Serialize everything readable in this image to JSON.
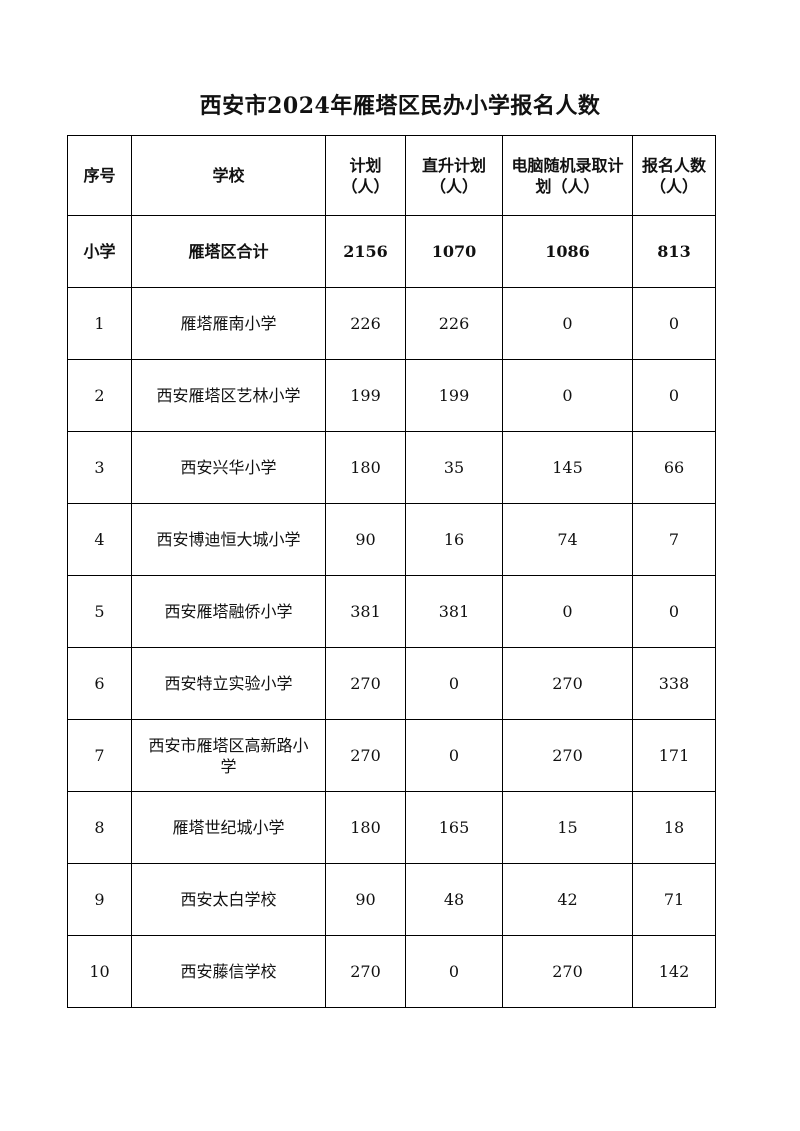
{
  "title": "西安市2024年雁塔区民办小学报名人数",
  "table": {
    "headers": [
      "序号",
      "学校",
      "计划（人）",
      "直升计划（人）",
      "电脑随机录取计划（人）",
      "报名人数（人）"
    ],
    "summary": [
      "小学",
      "雁塔区合计",
      "2156",
      "1070",
      "1086",
      "813"
    ],
    "rows": [
      [
        "1",
        "雁塔雁南小学",
        "226",
        "226",
        "0",
        "0"
      ],
      [
        "2",
        "西安雁塔区艺林小学",
        "199",
        "199",
        "0",
        "0"
      ],
      [
        "3",
        "西安兴华小学",
        "180",
        "35",
        "145",
        "66"
      ],
      [
        "4",
        "西安博迪恒大城小学",
        "90",
        "16",
        "74",
        "7"
      ],
      [
        "5",
        "西安雁塔融侨小学",
        "381",
        "381",
        "0",
        "0"
      ],
      [
        "6",
        "西安特立实验小学",
        "270",
        "0",
        "270",
        "338"
      ],
      [
        "7",
        "西安市雁塔区高新路小学",
        "270",
        "0",
        "270",
        "171"
      ],
      [
        "8",
        "雁塔世纪城小学",
        "180",
        "165",
        "15",
        "18"
      ],
      [
        "9",
        "西安太白学校",
        "90",
        "48",
        "42",
        "71"
      ],
      [
        "10",
        "西安藤信学校",
        "270",
        "0",
        "270",
        "142"
      ]
    ]
  }
}
